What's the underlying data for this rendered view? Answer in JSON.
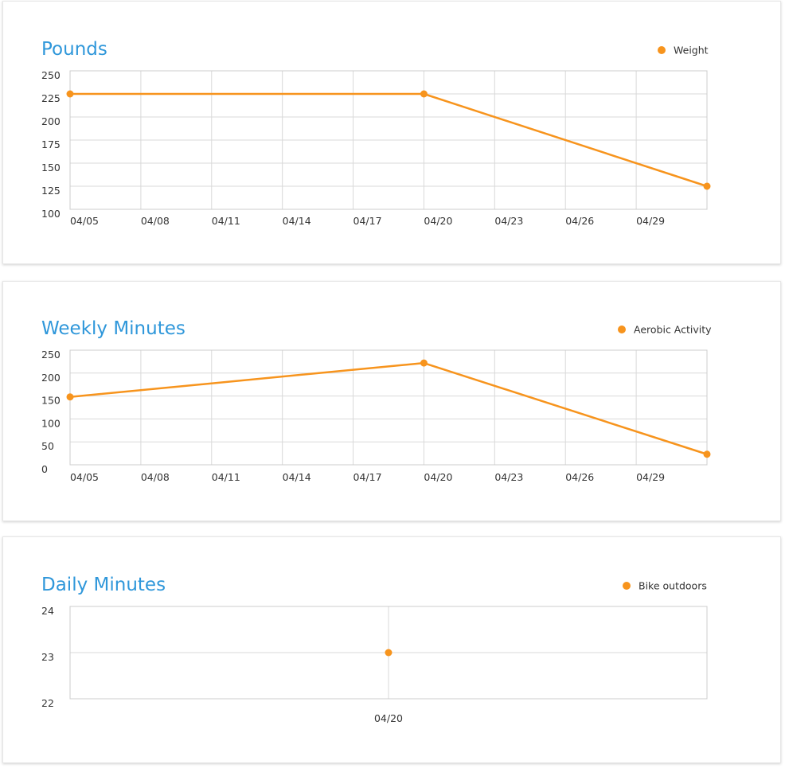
{
  "accent_color": "#f7941d",
  "title_color": "#2f97da",
  "chart_data": [
    {
      "type": "line",
      "title": "Pounds",
      "legend_position": "top-right",
      "x_labels": [
        "04/05",
        "04/08",
        "04/11",
        "04/14",
        "04/17",
        "04/20",
        "04/23",
        "04/26",
        "04/29"
      ],
      "y_ticks": [
        250,
        225,
        200,
        175,
        150,
        125,
        100
      ],
      "ylim": [
        100,
        250
      ],
      "series": [
        {
          "name": "Weight",
          "points": [
            {
              "x": "04/05",
              "y": 225
            },
            {
              "x": "04/20",
              "y": 225
            },
            {
              "x": "05/02",
              "y": 125
            }
          ]
        }
      ],
      "grid": true
    },
    {
      "type": "line",
      "title": "Weekly Minutes",
      "legend_position": "top-right",
      "x_labels": [
        "04/05",
        "04/08",
        "04/11",
        "04/14",
        "04/17",
        "04/20",
        "04/23",
        "04/26",
        "04/29"
      ],
      "y_ticks": [
        250,
        200,
        150,
        100,
        50,
        0
      ],
      "ylim": [
        0,
        250
      ],
      "series": [
        {
          "name": "Aerobic Activity",
          "points": [
            {
              "x": "04/05",
              "y": 148
            },
            {
              "x": "04/20",
              "y": 222
            },
            {
              "x": "05/02",
              "y": 23
            }
          ]
        }
      ],
      "grid": true
    },
    {
      "type": "scatter",
      "title": "Daily Minutes",
      "legend_position": "top-right",
      "x_labels": [
        "04/20"
      ],
      "y_ticks": [
        24,
        23,
        22
      ],
      "ylim": [
        22,
        24
      ],
      "series": [
        {
          "name": "Bike outdoors",
          "points": [
            {
              "x": "04/20",
              "y": 23
            }
          ]
        }
      ],
      "grid": true
    }
  ]
}
